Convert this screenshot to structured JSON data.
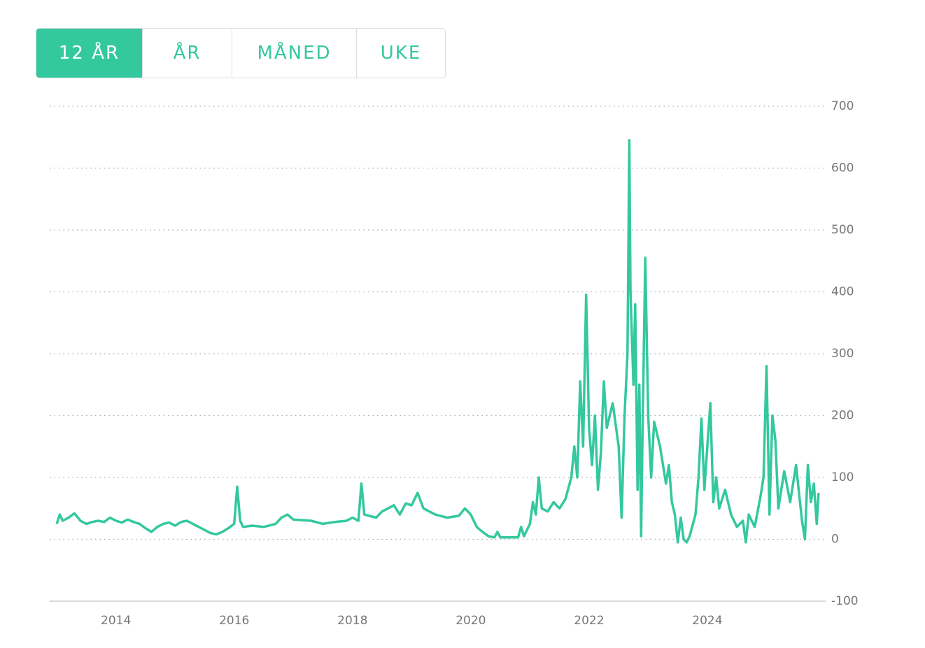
{
  "tabs": [
    "12 ÅR",
    "ÅR",
    "MÅNED",
    "UKE"
  ],
  "active_tab": 0,
  "chart_data": {
    "type": "line",
    "color": "#34c89e",
    "grid": true,
    "x": [
      2013.0,
      2013.05,
      2013.1,
      2013.2,
      2013.3,
      2013.4,
      2013.5,
      2013.6,
      2013.7,
      2013.8,
      2013.9,
      2014.0,
      2014.1,
      2014.2,
      2014.3,
      2014.4,
      2014.5,
      2014.6,
      2014.7,
      2014.8,
      2014.9,
      2015.0,
      2015.1,
      2015.2,
      2015.3,
      2015.4,
      2015.5,
      2015.6,
      2015.7,
      2015.8,
      2015.9,
      2016.0,
      2016.05,
      2016.1,
      2016.15,
      2016.3,
      2016.5,
      2016.7,
      2016.8,
      2016.9,
      2017.0,
      2017.3,
      2017.5,
      2017.7,
      2017.9,
      2018.0,
      2018.1,
      2018.15,
      2018.2,
      2018.4,
      2018.5,
      2018.6,
      2018.7,
      2018.8,
      2018.9,
      2019.0,
      2019.1,
      2019.2,
      2019.4,
      2019.6,
      2019.8,
      2019.9,
      2020.0,
      2020.1,
      2020.2,
      2020.3,
      2020.4,
      2020.45,
      2020.5,
      2020.7,
      2020.8,
      2020.85,
      2020.9,
      2021.0,
      2021.05,
      2021.1,
      2021.15,
      2021.2,
      2021.3,
      2021.4,
      2021.5,
      2021.6,
      2021.7,
      2021.75,
      2021.8,
      2021.85,
      2021.9,
      2021.95,
      2022.0,
      2022.05,
      2022.1,
      2022.15,
      2022.2,
      2022.25,
      2022.3,
      2022.4,
      2022.5,
      2022.55,
      2022.6,
      2022.65,
      2022.68,
      2022.7,
      2022.75,
      2022.78,
      2022.82,
      2022.85,
      2022.88,
      2022.9,
      2022.95,
      2023.0,
      2023.05,
      2023.1,
      2023.2,
      2023.3,
      2023.35,
      2023.4,
      2023.45,
      2023.5,
      2023.55,
      2023.6,
      2023.65,
      2023.7,
      2023.8,
      2023.85,
      2023.9,
      2023.95,
      2024.0,
      2024.05,
      2024.1,
      2024.15,
      2024.2,
      2024.3,
      2024.4,
      2024.5,
      2024.6,
      2024.65,
      2024.7,
      2024.8,
      2024.9,
      2024.95,
      2025.0,
      2025.05,
      2025.1,
      2025.15,
      2025.2,
      2025.3,
      2025.4,
      2025.5,
      2025.6,
      2025.65,
      2025.7,
      2025.75,
      2025.8,
      2025.85,
      2025.88
    ],
    "values": [
      25,
      40,
      30,
      35,
      42,
      30,
      25,
      28,
      30,
      28,
      35,
      30,
      27,
      32,
      28,
      25,
      18,
      12,
      20,
      25,
      27,
      22,
      28,
      30,
      25,
      20,
      15,
      10,
      8,
      12,
      18,
      25,
      85,
      30,
      20,
      22,
      20,
      25,
      35,
      40,
      32,
      30,
      25,
      28,
      30,
      35,
      30,
      90,
      40,
      35,
      45,
      50,
      55,
      40,
      58,
      55,
      75,
      50,
      40,
      35,
      38,
      50,
      40,
      20,
      12,
      5,
      3,
      12,
      3,
      3,
      3,
      20,
      5,
      25,
      60,
      40,
      100,
      50,
      45,
      60,
      50,
      65,
      100,
      150,
      100,
      255,
      150,
      395,
      180,
      120,
      200,
      80,
      140,
      255,
      180,
      220,
      150,
      35,
      200,
      300,
      645,
      400,
      250,
      380,
      80,
      250,
      5,
      150,
      455,
      200,
      100,
      190,
      150,
      90,
      120,
      60,
      40,
      -5,
      35,
      0,
      -5,
      5,
      40,
      100,
      195,
      80,
      150,
      220,
      60,
      100,
      50,
      80,
      40,
      20,
      30,
      -5,
      40,
      20,
      70,
      100,
      280,
      40,
      200,
      160,
      50,
      110,
      60,
      120,
      30,
      0,
      120,
      60,
      90,
      25,
      75
    ],
    "xlim": [
      2012.88,
      2026.0
    ],
    "xticks": [
      2014,
      2016,
      2018,
      2020,
      2022,
      2024
    ],
    "ylim": [
      -100,
      700
    ],
    "yticks": [
      -100,
      0,
      100,
      200,
      300,
      400,
      500,
      600,
      700
    ]
  }
}
